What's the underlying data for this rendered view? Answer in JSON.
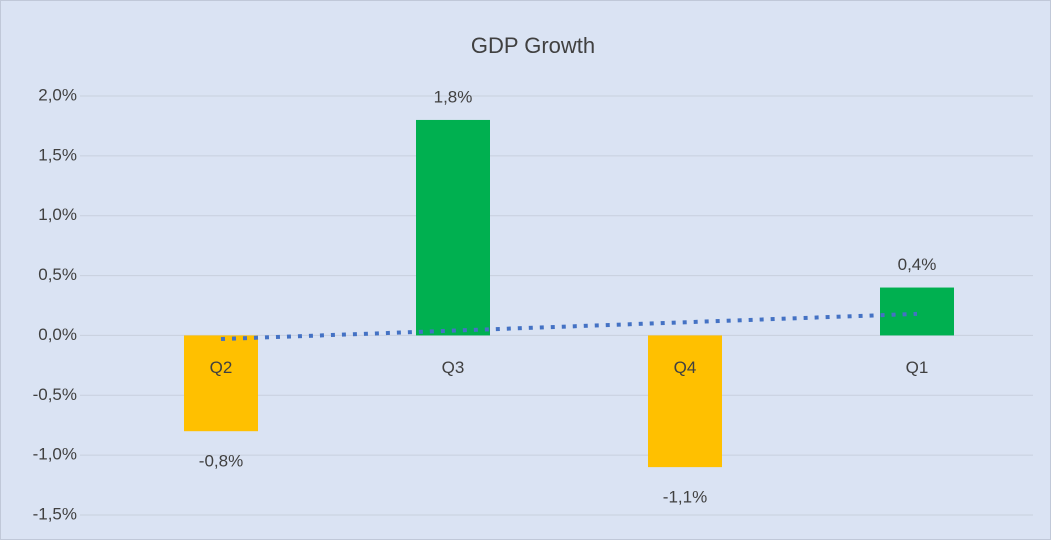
{
  "chart_data": {
    "type": "bar",
    "title": "GDP Growth",
    "categories": [
      "Q2",
      "Q3",
      "Q4",
      "Q1"
    ],
    "values": [
      -0.8,
      1.8,
      -1.1,
      0.4
    ],
    "value_labels": [
      "-0,8%",
      "1,8%",
      "-1,1%",
      "0,4%"
    ],
    "colors": [
      "#ffc000",
      "#00b050",
      "#ffc000",
      "#00b050"
    ],
    "ylim": [
      -1.5,
      2
    ],
    "yticks": [
      {
        "value": 2,
        "label": "2,0%"
      },
      {
        "value": 1.5,
        "label": "1,5%"
      },
      {
        "value": 1,
        "label": "1,0%"
      },
      {
        "value": 0.5,
        "label": "0,5%"
      },
      {
        "value": 0,
        "label": "0,0%"
      },
      {
        "value": -0.5,
        "label": "-0,5%"
      },
      {
        "value": -1,
        "label": "-1,0%"
      },
      {
        "value": -1.5,
        "label": "-1,5%"
      }
    ],
    "grid": true,
    "trendline": {
      "kind": "linear",
      "color": "#4472c4"
    }
  }
}
